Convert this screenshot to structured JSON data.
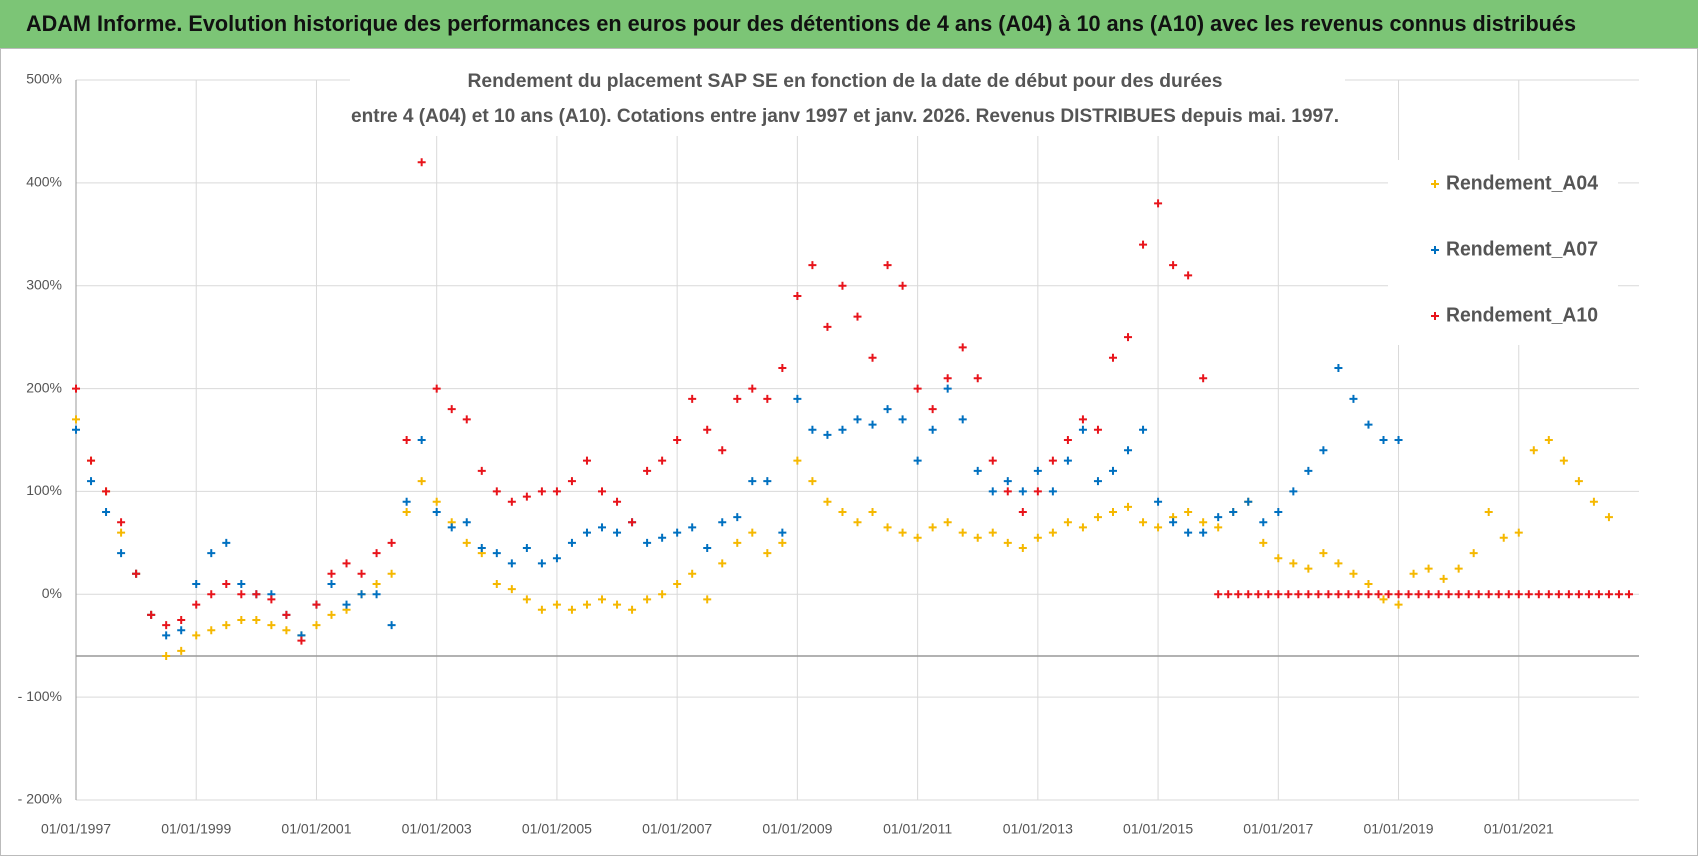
{
  "header": {
    "title": "ADAM Informe. Evolution historique des performances en euros pour des détentions de 4 ans (A04) à 10 ans (A10) avec les revenus connus distribués"
  },
  "chart_data": {
    "type": "scatter",
    "title": [
      "Rendement du placement SAP SE en fonction de la date de début pour des durées",
      "entre 4 (A04) et 10 ans (A10).  Cotations entre janv 1997 et janv. 2026. Revenus DISTRIBUES depuis mai. 1997."
    ],
    "xlim": [
      "01/01/1997",
      "01/01/2023"
    ],
    "xticks": [
      "01/01/1997",
      "01/01/1999",
      "01/01/2001",
      "01/01/2003",
      "01/01/2005",
      "01/01/2007",
      "01/01/2009",
      "01/01/2011",
      "01/01/2013",
      "01/01/2015",
      "01/01/2017",
      "01/01/2019",
      "01/01/2021"
    ],
    "ylim": [
      -200,
      500
    ],
    "yticks": [
      {
        "value": -200,
        "label": "- 200%"
      },
      {
        "value": -100,
        "label": "- 100%"
      },
      {
        "value": 0,
        "label": "0%"
      },
      {
        "value": 100,
        "label": "100%"
      },
      {
        "value": 200,
        "label": "200%"
      },
      {
        "value": 300,
        "label": "300%"
      },
      {
        "value": 400,
        "label": "400%"
      },
      {
        "value": 500,
        "label": "500%"
      }
    ],
    "hline": -60,
    "grid": true,
    "legend": "right",
    "series": [
      {
        "name": "Rendement_A04",
        "color": "#f5b800",
        "x": [
          "01/01/1997",
          "01/04/1997",
          "01/07/1997",
          "01/10/1997",
          "01/01/1998",
          "01/04/1998",
          "01/07/1998",
          "01/10/1998",
          "01/01/1999",
          "01/04/1999",
          "01/07/1999",
          "01/10/1999",
          "01/01/2000",
          "01/04/2000",
          "01/07/2000",
          "01/10/2000",
          "01/01/2001",
          "01/04/2001",
          "01/07/2001",
          "01/10/2001",
          "01/01/2002",
          "01/04/2002",
          "01/07/2002",
          "01/10/2002",
          "01/01/2003",
          "01/04/2003",
          "01/07/2003",
          "01/10/2003",
          "01/01/2004",
          "01/04/2004",
          "01/07/2004",
          "01/10/2004",
          "01/01/2005",
          "01/04/2005",
          "01/07/2005",
          "01/10/2005",
          "01/01/2006",
          "01/04/2006",
          "01/07/2006",
          "01/10/2006",
          "01/01/2007",
          "01/04/2007",
          "01/07/2007",
          "01/10/2007",
          "01/01/2008",
          "01/04/2008",
          "01/07/2008",
          "01/10/2008",
          "01/01/2009",
          "01/04/2009",
          "01/07/2009",
          "01/10/2009",
          "01/01/2010",
          "01/04/2010",
          "01/07/2010",
          "01/10/2010",
          "01/01/2011",
          "01/04/2011",
          "01/07/2011",
          "01/10/2011",
          "01/01/2012",
          "01/04/2012",
          "01/07/2012",
          "01/10/2012",
          "01/01/2013",
          "01/04/2013",
          "01/07/2013",
          "01/10/2013",
          "01/01/2014",
          "01/04/2014",
          "01/07/2014",
          "01/10/2014",
          "01/01/2015",
          "01/04/2015",
          "01/07/2015",
          "01/10/2015",
          "01/01/2016",
          "01/04/2016",
          "01/07/2016",
          "01/10/2016",
          "01/01/2017",
          "01/04/2017",
          "01/07/2017",
          "01/10/2017",
          "01/01/2018",
          "01/04/2018",
          "01/07/2018",
          "01/10/2018",
          "01/01/2019",
          "01/04/2019",
          "01/07/2019",
          "01/10/2019",
          "01/01/2020",
          "01/04/2020",
          "01/07/2020",
          "01/10/2020",
          "01/01/2021",
          "01/04/2021",
          "01/07/2021",
          "01/10/2021",
          "01/01/2022",
          "01/04/2022",
          "01/07/2022"
        ],
        "values": [
          170,
          130,
          100,
          60,
          20,
          -20,
          -60,
          -55,
          -40,
          -35,
          -30,
          -25,
          -25,
          -30,
          -35,
          -40,
          -30,
          -20,
          -15,
          0,
          10,
          20,
          80,
          110,
          90,
          70,
          50,
          40,
          10,
          5,
          -5,
          -15,
          -10,
          -15,
          -10,
          -5,
          -10,
          -15,
          -5,
          0,
          10,
          20,
          -5,
          30,
          50,
          60,
          40,
          50,
          130,
          110,
          90,
          80,
          70,
          80,
          65,
          60,
          55,
          65,
          70,
          60,
          55,
          60,
          50,
          45,
          55,
          60,
          70,
          65,
          75,
          80,
          85,
          70,
          65,
          75,
          80,
          70,
          65,
          80,
          90,
          50,
          35,
          30,
          25,
          40,
          30,
          20,
          10,
          -5,
          -10,
          20,
          25,
          15,
          25,
          40,
          80,
          55,
          60,
          140,
          150,
          130,
          110,
          90,
          75
        ]
      },
      {
        "name": "Rendement_A07",
        "color": "#0070c0",
        "x": [
          "01/01/1997",
          "01/04/1997",
          "01/07/1997",
          "01/10/1997",
          "01/01/1998",
          "01/04/1998",
          "01/07/1998",
          "01/10/1998",
          "01/01/1999",
          "01/04/1999",
          "01/07/1999",
          "01/10/1999",
          "01/01/2000",
          "01/04/2000",
          "01/07/2000",
          "01/10/2000",
          "01/01/2001",
          "01/04/2001",
          "01/07/2001",
          "01/10/2001",
          "01/01/2002",
          "01/04/2002",
          "01/07/2002",
          "01/10/2002",
          "01/01/2003",
          "01/04/2003",
          "01/07/2003",
          "01/10/2003",
          "01/01/2004",
          "01/04/2004",
          "01/07/2004",
          "01/10/2004",
          "01/01/2005",
          "01/04/2005",
          "01/07/2005",
          "01/10/2005",
          "01/01/2006",
          "01/04/2006",
          "01/07/2006",
          "01/10/2006",
          "01/01/2007",
          "01/04/2007",
          "01/07/2007",
          "01/10/2007",
          "01/01/2008",
          "01/04/2008",
          "01/07/2008",
          "01/10/2008",
          "01/01/2009",
          "01/04/2009",
          "01/07/2009",
          "01/10/2009",
          "01/01/2010",
          "01/04/2010",
          "01/07/2010",
          "01/10/2010",
          "01/01/2011",
          "01/04/2011",
          "01/07/2011",
          "01/10/2011",
          "01/01/2012",
          "01/04/2012",
          "01/07/2012",
          "01/10/2012",
          "01/01/2013",
          "01/04/2013",
          "01/07/2013",
          "01/10/2013",
          "01/01/2014",
          "01/04/2014",
          "01/07/2014",
          "01/10/2014",
          "01/01/2015",
          "01/04/2015",
          "01/07/2015",
          "01/10/2015",
          "01/01/2016",
          "01/04/2016",
          "01/07/2016",
          "01/10/2016",
          "01/01/2017",
          "01/04/2017",
          "01/07/2017",
          "01/10/2017",
          "01/01/2018",
          "01/04/2018",
          "01/07/2018",
          "01/10/2018",
          "01/01/2019"
        ],
        "values": [
          160,
          110,
          80,
          40,
          20,
          -20,
          -40,
          -35,
          10,
          40,
          50,
          10,
          0,
          0,
          -20,
          -40,
          -10,
          10,
          -10,
          0,
          0,
          -30,
          90,
          150,
          80,
          65,
          70,
          45,
          40,
          30,
          45,
          30,
          35,
          50,
          60,
          65,
          60,
          70,
          50,
          55,
          60,
          65,
          45,
          70,
          75,
          110,
          110,
          60,
          190,
          160,
          155,
          160,
          170,
          165,
          180,
          170,
          130,
          160,
          200,
          170,
          120,
          100,
          110,
          100,
          120,
          100,
          130,
          160,
          110,
          120,
          140,
          160,
          90,
          70,
          60,
          60,
          75,
          80,
          90,
          70,
          80,
          100,
          120,
          140,
          220,
          190,
          165,
          150,
          150
        ]
      },
      {
        "name": "Rendement_A10",
        "color": "#e8141b",
        "x": [
          "01/01/1997",
          "01/04/1997",
          "01/07/1997",
          "01/10/1997",
          "01/01/1998",
          "01/04/1998",
          "01/07/1998",
          "01/10/1998",
          "01/01/1999",
          "01/04/1999",
          "01/07/1999",
          "01/10/1999",
          "01/01/2000",
          "01/04/2000",
          "01/07/2000",
          "01/10/2000",
          "01/01/2001",
          "01/04/2001",
          "01/07/2001",
          "01/10/2001",
          "01/01/2002",
          "01/04/2002",
          "01/07/2002",
          "01/10/2002",
          "01/01/2003",
          "01/04/2003",
          "01/07/2003",
          "01/10/2003",
          "01/01/2004",
          "01/04/2004",
          "01/07/2004",
          "01/10/2004",
          "01/01/2005",
          "01/04/2005",
          "01/07/2005",
          "01/10/2005",
          "01/01/2006",
          "01/04/2006",
          "01/07/2006",
          "01/10/2006",
          "01/01/2007",
          "01/04/2007",
          "01/07/2007",
          "01/10/2007",
          "01/01/2008",
          "01/04/2008",
          "01/07/2008",
          "01/10/2008",
          "01/01/2009",
          "01/04/2009",
          "01/07/2009",
          "01/10/2009",
          "01/01/2010",
          "01/04/2010",
          "01/07/2010",
          "01/10/2010",
          "01/01/2011",
          "01/04/2011",
          "01/07/2011",
          "01/10/2011",
          "01/01/2012",
          "01/04/2012",
          "01/07/2012",
          "01/10/2012",
          "01/01/2013",
          "01/04/2013",
          "01/07/2013",
          "01/10/2013",
          "01/01/2014",
          "01/04/2014",
          "01/07/2014",
          "01/10/2014",
          "01/01/2015",
          "01/04/2015",
          "01/07/2015",
          "01/10/2015",
          "01/01/2016",
          "01/03/2016",
          "01/05/2016",
          "01/07/2016",
          "01/09/2016",
          "01/11/2016",
          "01/01/2017",
          "01/03/2017",
          "01/05/2017",
          "01/07/2017",
          "01/09/2017",
          "01/11/2017",
          "01/01/2018",
          "01/03/2018",
          "01/05/2018",
          "01/07/2018",
          "01/09/2018",
          "01/11/2018",
          "01/01/2019",
          "01/03/2019",
          "01/05/2019",
          "01/07/2019",
          "01/09/2019",
          "01/11/2019",
          "01/01/2020",
          "01/03/2020",
          "01/05/2020",
          "01/07/2020",
          "01/09/2020",
          "01/11/2020",
          "01/01/2021",
          "01/03/2021",
          "01/05/2021",
          "01/07/2021",
          "01/09/2021",
          "01/11/2021",
          "01/01/2022",
          "01/03/2022",
          "01/05/2022",
          "01/07/2022",
          "01/09/2022",
          "01/11/2022"
        ],
        "values": [
          200,
          130,
          100,
          70,
          20,
          -20,
          -30,
          -25,
          -10,
          0,
          10,
          0,
          0,
          -5,
          -20,
          -45,
          -10,
          20,
          30,
          20,
          40,
          50,
          150,
          420,
          200,
          180,
          170,
          120,
          100,
          90,
          95,
          100,
          100,
          110,
          130,
          100,
          90,
          70,
          120,
          130,
          150,
          190,
          160,
          140,
          190,
          200,
          190,
          220,
          290,
          320,
          260,
          300,
          270,
          230,
          320,
          300,
          200,
          180,
          210,
          240,
          210,
          130,
          100,
          80,
          100,
          130,
          150,
          170,
          160,
          230,
          250,
          340,
          380,
          320,
          310,
          210,
          0,
          0,
          0,
          0,
          0,
          0,
          0,
          0,
          0,
          0,
          0,
          0,
          0,
          0,
          0,
          0,
          0,
          0,
          0,
          0,
          0,
          0,
          0,
          0,
          0,
          0,
          0,
          0,
          0,
          0,
          0,
          0,
          0,
          0,
          0,
          0,
          0,
          0,
          0,
          0,
          0,
          0
        ]
      }
    ]
  }
}
